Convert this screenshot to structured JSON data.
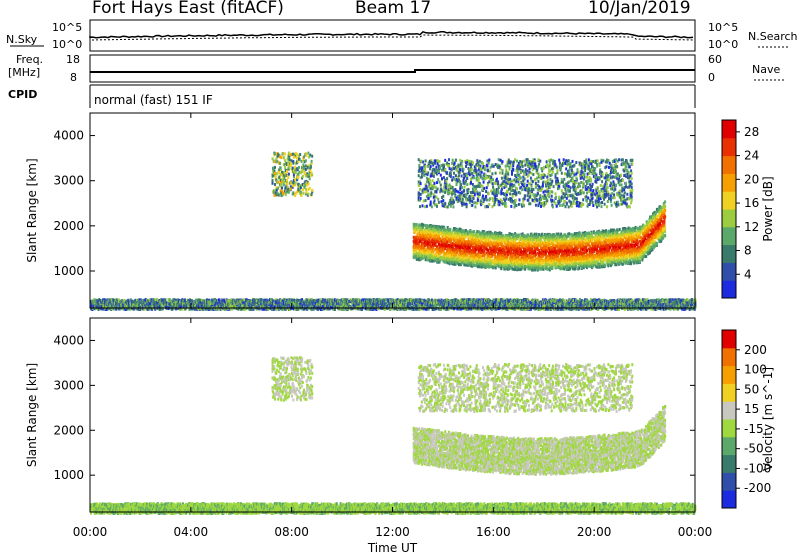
{
  "header": {
    "title": "Fort Hays East (fitACF)",
    "beam": "Beam 17",
    "date": "10/Jan/2019"
  },
  "top_panels": {
    "nsky_label": "N.Sky",
    "nsky_ticks": [
      "10^5",
      "10^0"
    ],
    "nsearch_label": "N.Search",
    "nsearch_ticks": [
      "10^5",
      "10^0"
    ],
    "freq_label": "Freq.",
    "freq_unit": "[MHz]",
    "freq_ticks": [
      "18",
      "8"
    ],
    "nave_label": "Nave",
    "nave_ticks": [
      "60",
      "0"
    ],
    "cpid_label": "CPID",
    "cpid_value": "normal (fast) 151 IF"
  },
  "chart_data": [
    {
      "type": "heatmap",
      "title": "",
      "xlabel": "Time UT",
      "ylabel": "Slant Range [km]",
      "xlim": [
        0,
        24
      ],
      "ylim": [
        180,
        4500
      ],
      "x_ticks": [
        "00:00",
        "04:00",
        "08:00",
        "12:00",
        "16:00",
        "20:00",
        "00:00"
      ],
      "y_ticks": [
        1000,
        2000,
        3000,
        4000
      ],
      "colorbar": {
        "label": "Power [dB]",
        "ticks": [
          4,
          8,
          12,
          16,
          20,
          24,
          28
        ],
        "range": [
          0,
          30
        ],
        "colors": [
          "#1c2be0",
          "#2f4fa8",
          "#3a7a6a",
          "#5aa86a",
          "#9ccc40",
          "#f0d020",
          "#f5a000",
          "#f07000",
          "#e83000",
          "#e00000"
        ]
      },
      "regions": [
        {
          "name": "main echo band",
          "x_start": 12.8,
          "x_end": 22.8,
          "range_low": 1300,
          "range_high": 2100,
          "value": 24
        },
        {
          "name": "upper arc",
          "x_start": 13.0,
          "x_end": 21.5,
          "range_low": 2450,
          "range_high": 3500,
          "value": 8
        },
        {
          "name": "morning patch",
          "x_start": 7.2,
          "x_end": 8.8,
          "range_low": 2700,
          "range_high": 3650,
          "value": 12
        },
        {
          "name": "ground scatter strip",
          "x_start": 0.0,
          "x_end": 24.0,
          "range_low": 180,
          "range_high": 400,
          "value": 8
        }
      ]
    },
    {
      "type": "heatmap",
      "title": "",
      "xlabel": "Time UT",
      "ylabel": "Slant Range [km]",
      "xlim": [
        0,
        24
      ],
      "ylim": [
        180,
        4500
      ],
      "x_ticks": [
        "00:00",
        "04:00",
        "08:00",
        "12:00",
        "16:00",
        "20:00",
        "00:00"
      ],
      "y_ticks": [
        1000,
        2000,
        3000,
        4000
      ],
      "colorbar": {
        "label": "Velocity [m s^-1]",
        "ticks": [
          200,
          100,
          50,
          15,
          -15,
          -50,
          -100,
          -200
        ],
        "range": [
          -250,
          250
        ],
        "colors": [
          "#1c2be0",
          "#2f4fa8",
          "#3a7a6a",
          "#5aa86a",
          "#a0d840",
          "#c8c8c0",
          "#f0d020",
          "#f5a000",
          "#f07000",
          "#e00000"
        ]
      },
      "regions": [
        {
          "name": "main echo band",
          "x_start": 12.8,
          "x_end": 22.8,
          "range_low": 1300,
          "range_high": 2100,
          "value": 0
        },
        {
          "name": "upper arc",
          "x_start": 13.0,
          "x_end": 21.5,
          "range_low": 2450,
          "range_high": 3500,
          "value": 0
        },
        {
          "name": "morning patch",
          "x_start": 7.2,
          "x_end": 8.8,
          "range_low": 2700,
          "range_high": 3650,
          "value": 0
        },
        {
          "name": "ground scatter strip",
          "x_start": 0.0,
          "x_end": 24.0,
          "range_low": 180,
          "range_high": 400,
          "value": -40
        }
      ]
    }
  ]
}
